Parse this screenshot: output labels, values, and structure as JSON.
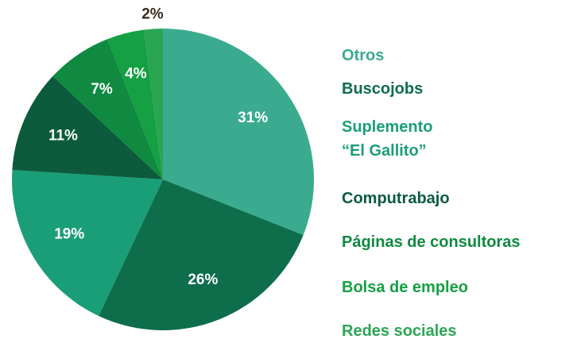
{
  "chart_data": {
    "type": "pie",
    "categories": [
      "Otros",
      "Buscojobs",
      "Suplemento\n“El Gallito”",
      "Computrabajo",
      "Páginas de consultoras",
      "Bolsa de empleo",
      "Redes sociales"
    ],
    "values": [
      31,
      26,
      19,
      11,
      7,
      4,
      2
    ],
    "value_labels": [
      "31%",
      "26%",
      "19%",
      "11%",
      "7%",
      "4%",
      "2%"
    ],
    "colors": [
      "#3aab8f",
      "#0e6e4c",
      "#1a9e78",
      "#0b5b3c",
      "#0f8a40",
      "#14a043",
      "#2aa653"
    ]
  }
}
